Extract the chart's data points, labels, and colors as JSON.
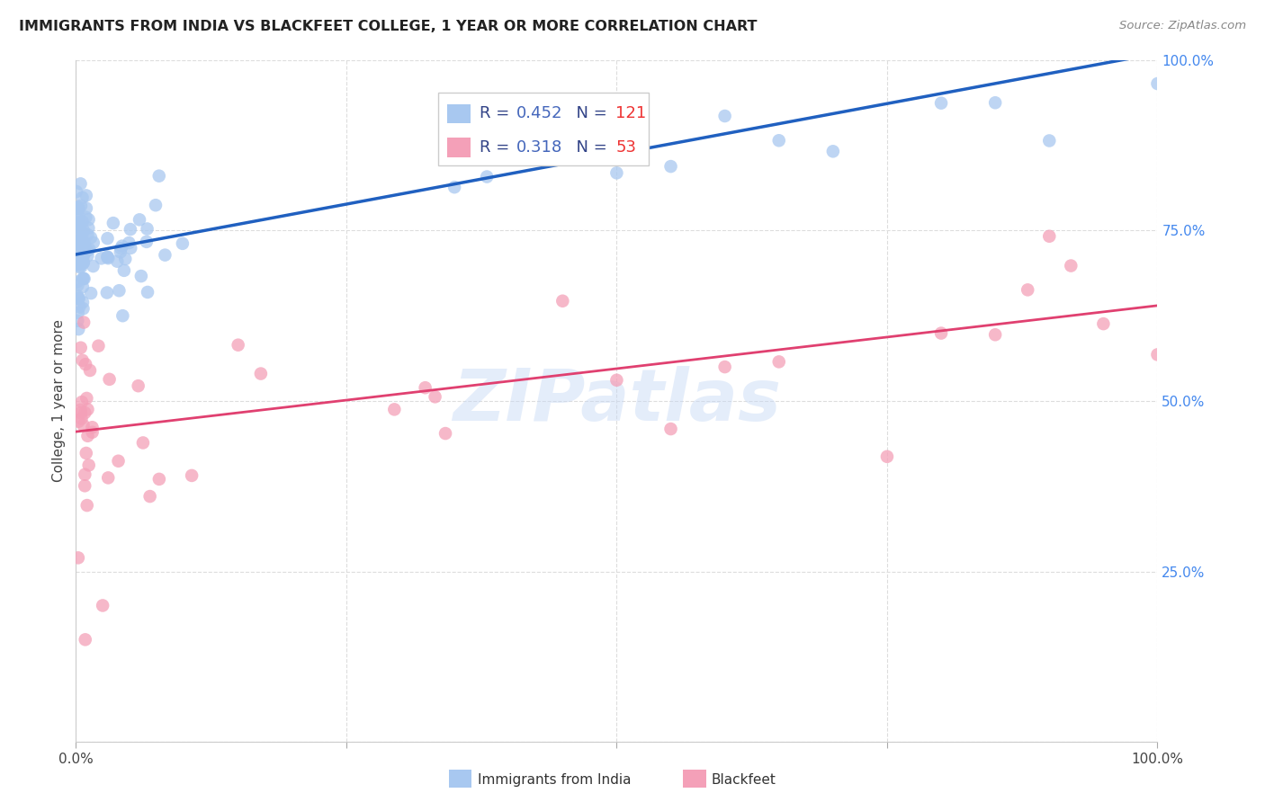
{
  "title": "IMMIGRANTS FROM INDIA VS BLACKFEET COLLEGE, 1 YEAR OR MORE CORRELATION CHART",
  "source": "Source: ZipAtlas.com",
  "ylabel": "College, 1 year or more",
  "xlim": [
    0,
    1
  ],
  "ylim": [
    0,
    1
  ],
  "legend_blue_R": "0.452",
  "legend_blue_N": "121",
  "legend_pink_R": "0.318",
  "legend_pink_N": "53",
  "blue_color": "#a8c8f0",
  "pink_color": "#f4a0b8",
  "blue_line_color": "#2060c0",
  "pink_line_color": "#e04070",
  "blue_intercept": 0.715,
  "blue_slope": 0.295,
  "pink_intercept": 0.455,
  "pink_slope": 0.185,
  "background_color": "#ffffff",
  "watermark": "ZIPatlas",
  "legend_text_color": "#4466bb",
  "legend_n_color": "#ee3333",
  "grid_color": "#dddddd",
  "title_color": "#222222",
  "source_color": "#888888",
  "ylabel_color": "#444444",
  "tick_color": "#4488ee",
  "xtick_color": "#444444"
}
